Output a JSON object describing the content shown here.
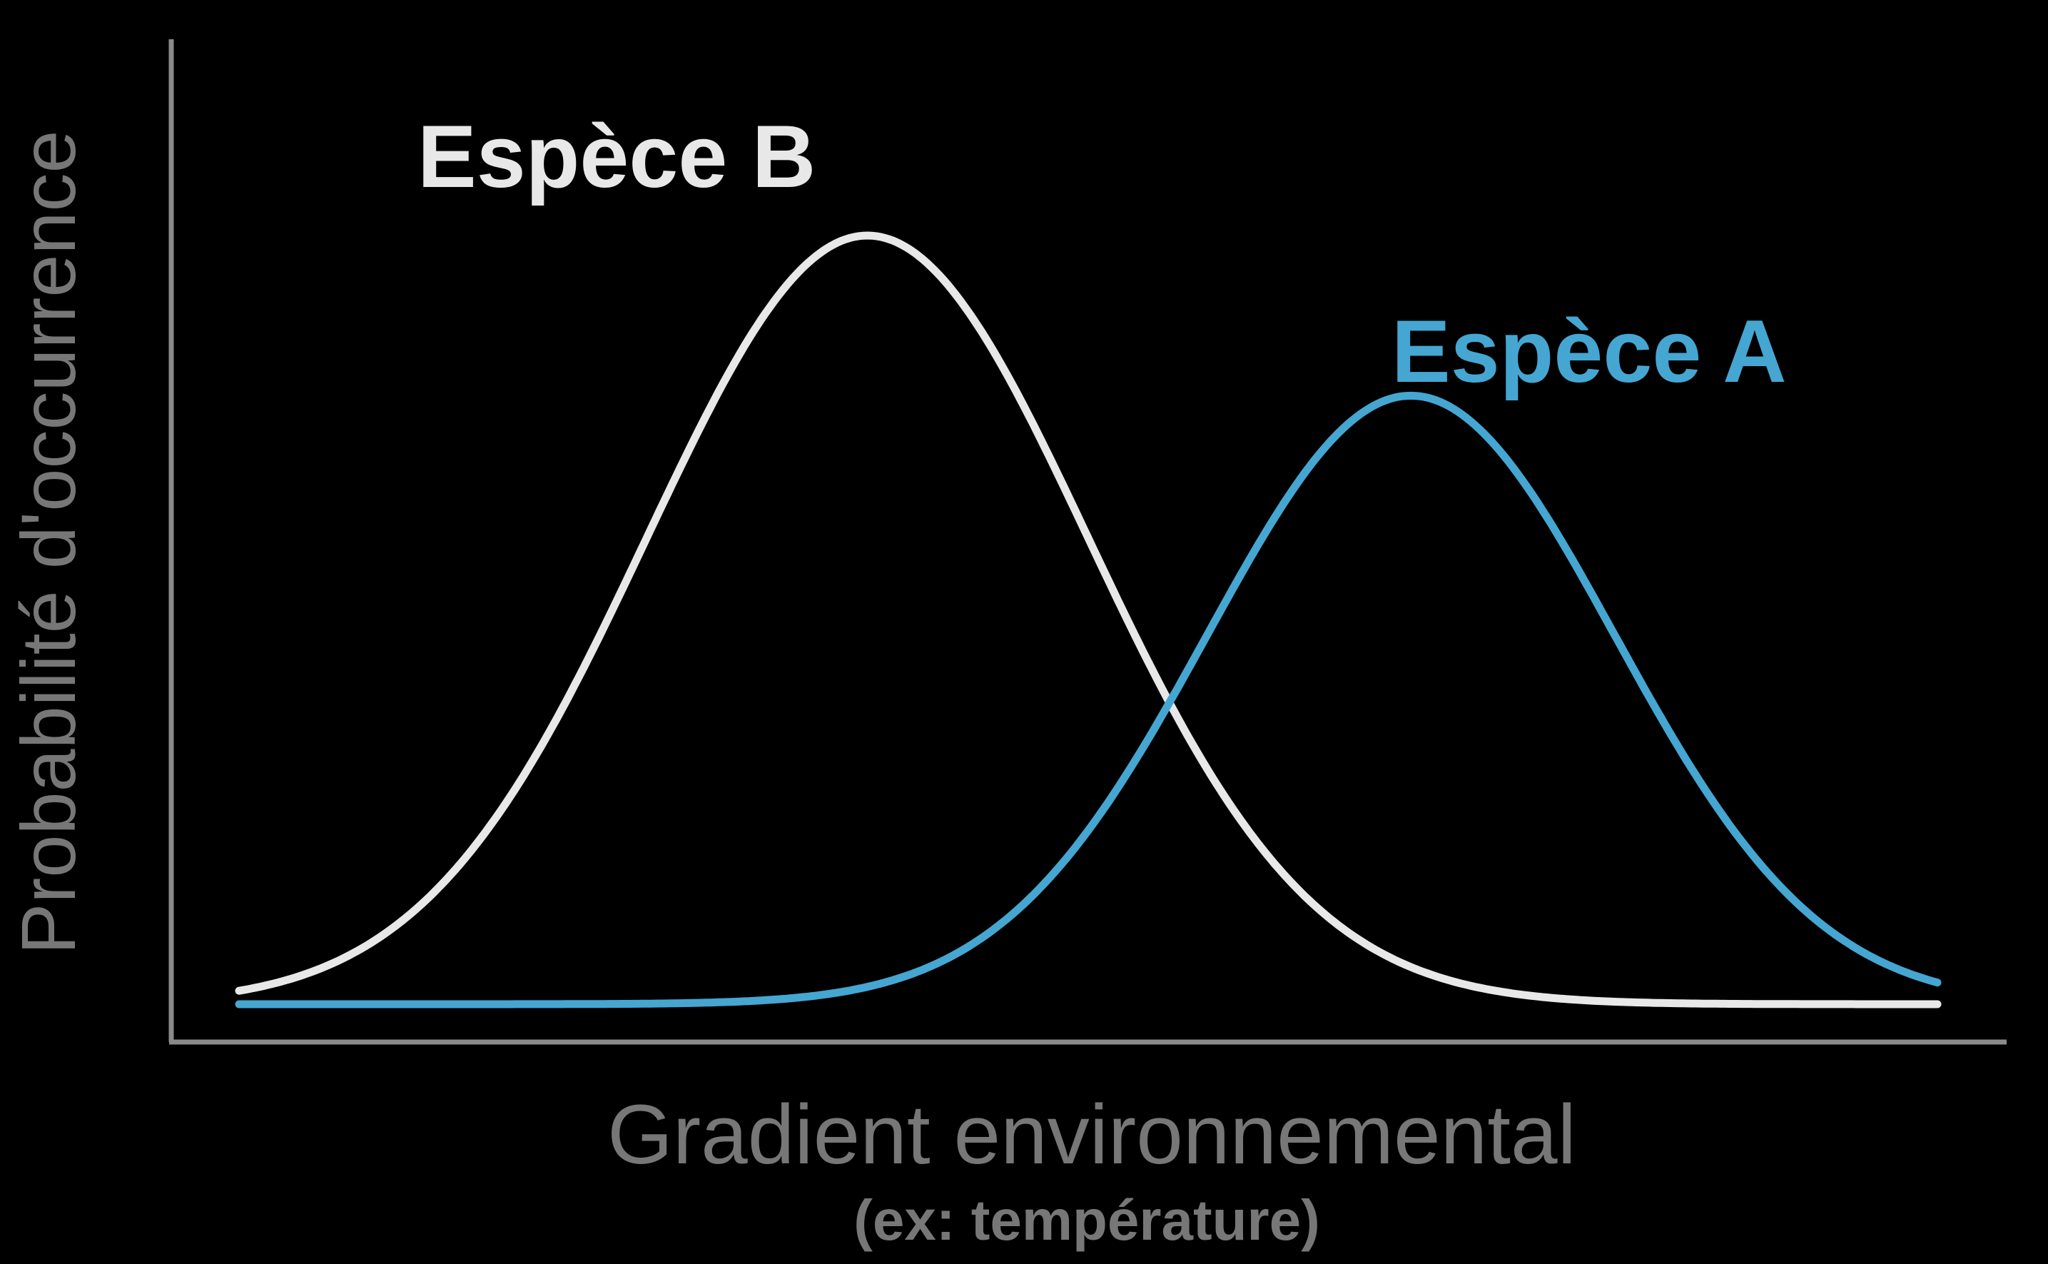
{
  "chart_data": {
    "type": "line",
    "title": "",
    "xlabel": "Gradient environnemental",
    "xlabel_sub": "(ex: température)",
    "ylabel": "Probabilité d'occurrence",
    "xlim": [
      0,
      100
    ],
    "ylim": [
      0,
      1.05
    ],
    "grid": false,
    "legend": "inline labels near curve peaks",
    "axis_ticks": false,
    "series": [
      {
        "name": "Espèce A",
        "color": "#45a6d2",
        "curve": "gaussian",
        "peak_x": 69,
        "peak_y": 0.76,
        "sd": 12
      },
      {
        "name": "Espèce B",
        "color": "#e8e8e8",
        "curve": "gaussian",
        "peak_x": 37,
        "peak_y": 0.96,
        "sd": 13
      }
    ]
  }
}
